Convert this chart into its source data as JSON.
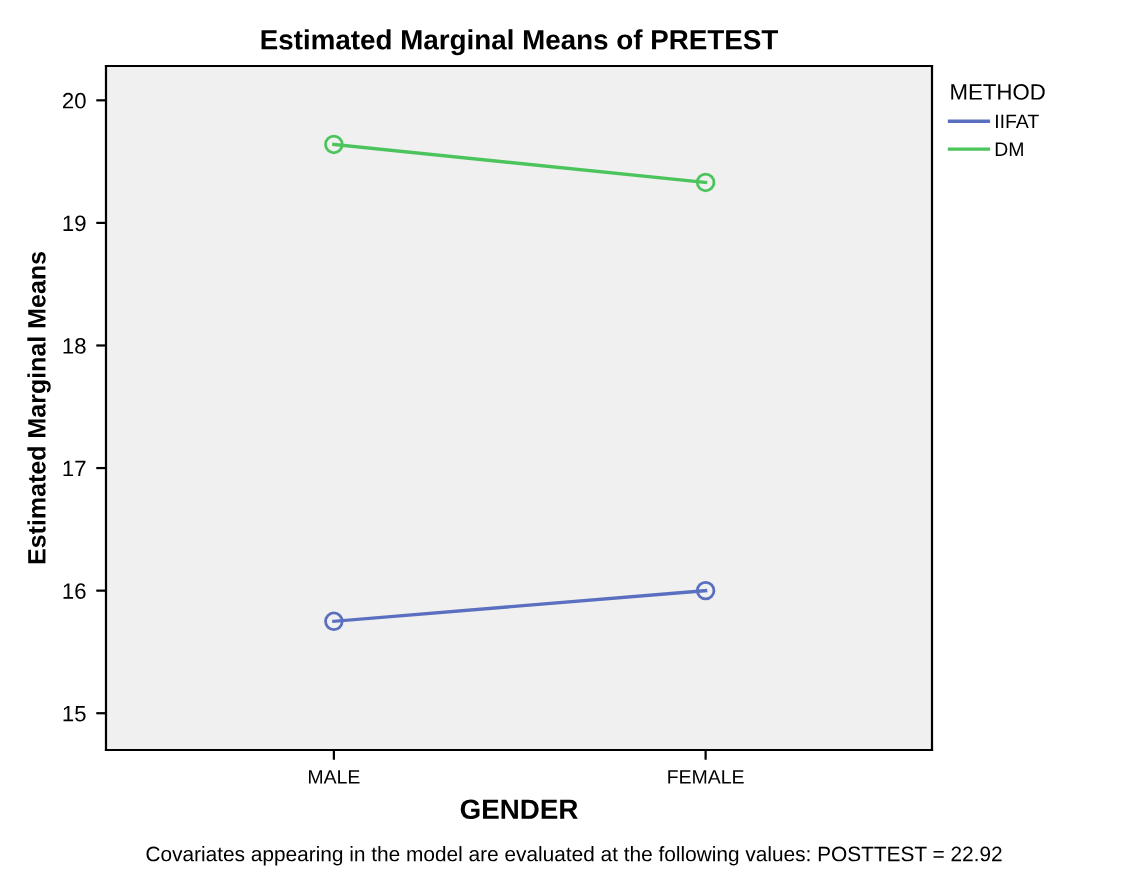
{
  "chart_data": {
    "type": "line",
    "title": "Estimated Marginal Means of PRETEST",
    "xlabel": "GENDER",
    "ylabel": "Estimated Marginal Means",
    "legend_title": "METHOD",
    "categories": [
      "MALE",
      "FEMALE"
    ],
    "series": [
      {
        "name": "IIFAT",
        "color": "#5a6fc0",
        "values": [
          15.75,
          16.0
        ]
      },
      {
        "name": "DM",
        "color": "#4cc45c",
        "values": [
          19.64,
          19.33
        ]
      }
    ],
    "ylim": [
      14.7,
      20.28
    ],
    "yticks": [
      15,
      16,
      17,
      18,
      19,
      20
    ],
    "grid": false,
    "legend": "top right",
    "marker": "circle",
    "line_style": "solid",
    "annotations": [
      "Covariates appearing in the model are evaluated at the following values: POSTTEST = 22.92"
    ]
  }
}
